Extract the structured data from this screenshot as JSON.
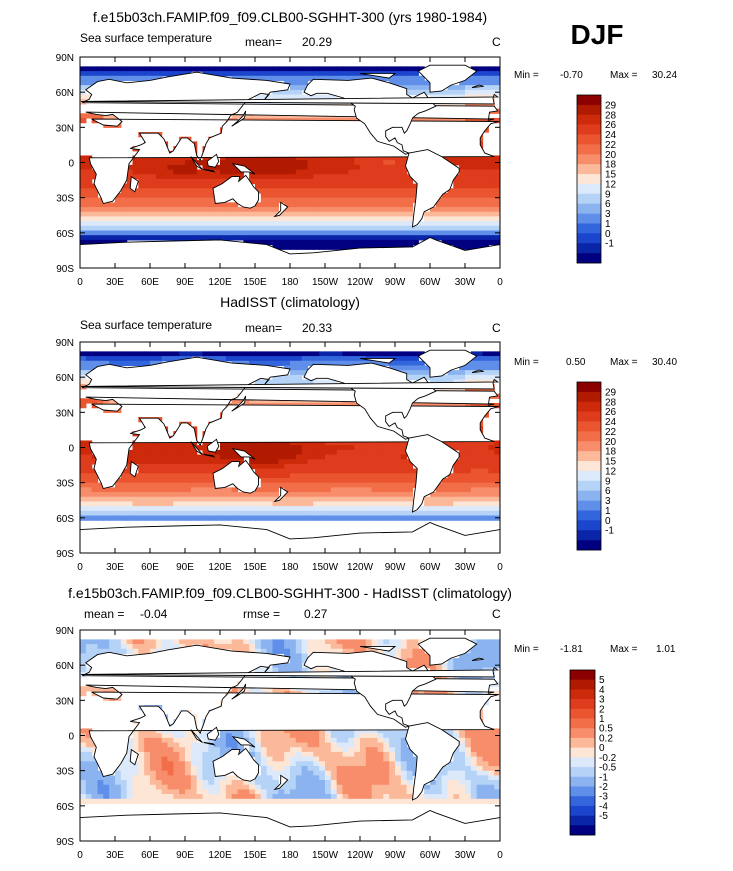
{
  "season": "DJF",
  "chart_data": [
    {
      "type": "heatmap",
      "title": "f.e15b03ch.FAMIP.f09_f09.CLB00-SGHHT-300 (yrs 1980-1984)",
      "left_label": "Sea surface temperature",
      "stat_label": "mean=",
      "stat_value": "20.29",
      "units": "C",
      "min_label": "Min =",
      "min_value": "-0.70",
      "max_label": "Max =",
      "max_value": "30.24",
      "x_ticks": [
        "0",
        "30E",
        "60E",
        "90E",
        "120E",
        "150E",
        "180",
        "150W",
        "120W",
        "90W",
        "60W",
        "30W",
        "0"
      ],
      "y_ticks": [
        "90N",
        "60N",
        "30N",
        "0",
        "30S",
        "60S",
        "90S"
      ],
      "colorbar_levels": [
        "29",
        "28",
        "26",
        "24",
        "22",
        "20",
        "18",
        "15",
        "12",
        "9",
        "6",
        "3",
        "1",
        "0",
        "-1"
      ],
      "colorbar_colors": [
        "#8b0000",
        "#b01a00",
        "#cc2a0a",
        "#de3c1c",
        "#ea5530",
        "#f26e48",
        "#f78d6a",
        "#fbb99a",
        "#fee6d6",
        "#dbe9fa",
        "#b5d2f7",
        "#8bb3f0",
        "#5f8fe8",
        "#3366dd",
        "#1a45cc",
        "#0a25a8",
        "#000080"
      ],
      "field": "model"
    },
    {
      "type": "heatmap",
      "title": "HadISST (climatology)",
      "left_label": "Sea surface temperature",
      "stat_label": "mean=",
      "stat_value": "20.33",
      "units": "C",
      "min_label": "Min =",
      "min_value": "0.50",
      "max_label": "Max =",
      "max_value": "30.40",
      "x_ticks": [
        "0",
        "30E",
        "60E",
        "90E",
        "120E",
        "150E",
        "180",
        "150W",
        "120W",
        "90W",
        "60W",
        "30W",
        "0"
      ],
      "y_ticks": [
        "90N",
        "60N",
        "30N",
        "0",
        "30S",
        "60S",
        "90S"
      ],
      "colorbar_levels": [
        "29",
        "28",
        "26",
        "24",
        "22",
        "20",
        "18",
        "15",
        "12",
        "9",
        "6",
        "3",
        "1",
        "0",
        "-1"
      ],
      "colorbar_colors": [
        "#8b0000",
        "#b01a00",
        "#cc2a0a",
        "#de3c1c",
        "#ea5530",
        "#f26e48",
        "#f78d6a",
        "#fbb99a",
        "#fee6d6",
        "#dbe9fa",
        "#b5d2f7",
        "#8bb3f0",
        "#5f8fe8",
        "#3366dd",
        "#1a45cc",
        "#0a25a8",
        "#000080"
      ],
      "field": "obs"
    },
    {
      "type": "heatmap",
      "title": "f.e15b03ch.FAMIP.f09_f09.CLB00-SGHHT-300 - HadISST (climatology)",
      "left_label": "mean =",
      "stat_label": "rmse =",
      "left_value": "-0.04",
      "stat_value": "0.27",
      "units": "C",
      "min_label": "Min =",
      "min_value": "-1.81",
      "max_label": "Max =",
      "max_value": "1.01",
      "x_ticks": [
        "0",
        "30E",
        "60E",
        "90E",
        "120E",
        "150E",
        "180",
        "150W",
        "120W",
        "90W",
        "60W",
        "30W",
        "0"
      ],
      "y_ticks": [
        "90N",
        "60N",
        "30N",
        "0",
        "30S",
        "60S",
        "90S"
      ],
      "colorbar_levels": [
        "5",
        "4",
        "3",
        "2",
        "1",
        "0.5",
        "0.2",
        "0",
        "-0.2",
        "-0.5",
        "-1",
        "-2",
        "-3",
        "-4",
        "-5"
      ],
      "colorbar_colors": [
        "#8b0000",
        "#b01a00",
        "#cc2a0a",
        "#de3c1c",
        "#ea5530",
        "#f26e48",
        "#f78d6a",
        "#fbb99a",
        "#fee6d6",
        "#dbe9fa",
        "#b5d2f7",
        "#8bb3f0",
        "#5f8fe8",
        "#3366dd",
        "#1a45cc",
        "#0a25a8",
        "#000080"
      ],
      "field": "diff"
    }
  ]
}
